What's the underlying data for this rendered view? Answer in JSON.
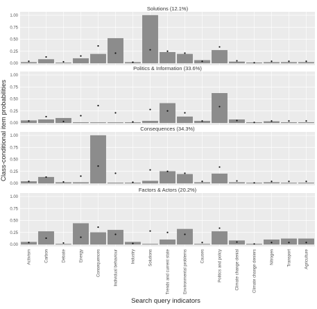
{
  "figure": {
    "ylabel": "Class-conditional item probabilities",
    "xlabel": "Search query indicators"
  },
  "colors": {
    "bar": "#8c8c8c",
    "bar_edge": "#7a7a7a",
    "point": "#111111",
    "panel_bg": "#ebebeb",
    "grid": "#ffffff"
  },
  "chart_data": {
    "type": "bar",
    "layout": "vertically stacked panels sharing the x axis",
    "grid": true,
    "ylim": [
      0,
      1.0
    ],
    "yticks": [
      0.0,
      0.25,
      0.5,
      0.75,
      1.0
    ],
    "ytick_labels": [
      "0.00",
      "0.25",
      "0.50",
      "0.75",
      "1.00"
    ],
    "categories": [
      "Activism",
      "Carbon",
      "Debate",
      "Energy",
      "Consequences",
      "Individual behaviour",
      "Industry",
      "Solutions",
      "Trends and current state",
      "Environmental problems",
      "Causes",
      "Politics and policy",
      "Climate change denial",
      "Climate change deniers",
      "Nitrogen",
      "Transport",
      "Agriculture"
    ],
    "overall_points": [
      0.04,
      0.13,
      0.03,
      0.15,
      0.36,
      0.21,
      0.02,
      0.28,
      0.25,
      0.21,
      0.04,
      0.34,
      0.05,
      0.01,
      0.04,
      0.04,
      0.04
    ],
    "panels": [
      {
        "title": "Solutions (12.1%)",
        "values": [
          0.02,
          0.08,
          0.0,
          0.1,
          0.19,
          0.52,
          0.02,
          1.0,
          0.23,
          0.19,
          0.06,
          0.27,
          0.03,
          0.01,
          0.02,
          0.02,
          0.02
        ]
      },
      {
        "title": "Politics & Information (33.6%)",
        "values": [
          0.05,
          0.07,
          0.1,
          0.01,
          0.0,
          0.0,
          0.01,
          0.04,
          0.41,
          0.13,
          0.04,
          0.62,
          0.07,
          0.01,
          0.03,
          0.01,
          0.01
        ]
      },
      {
        "title": "Consequences (34.3%)",
        "values": [
          0.04,
          0.13,
          0.02,
          0.02,
          1.0,
          0.01,
          0.01,
          0.05,
          0.25,
          0.19,
          0.02,
          0.2,
          0.02,
          0.0,
          0.02,
          0.0,
          0.01
        ]
      },
      {
        "title": "Factors & Actors (20.2%)",
        "values": [
          0.05,
          0.27,
          0.0,
          0.44,
          0.25,
          0.3,
          0.05,
          0.0,
          0.1,
          0.32,
          0.0,
          0.27,
          0.08,
          0.01,
          0.1,
          0.12,
          0.12
        ]
      }
    ]
  }
}
